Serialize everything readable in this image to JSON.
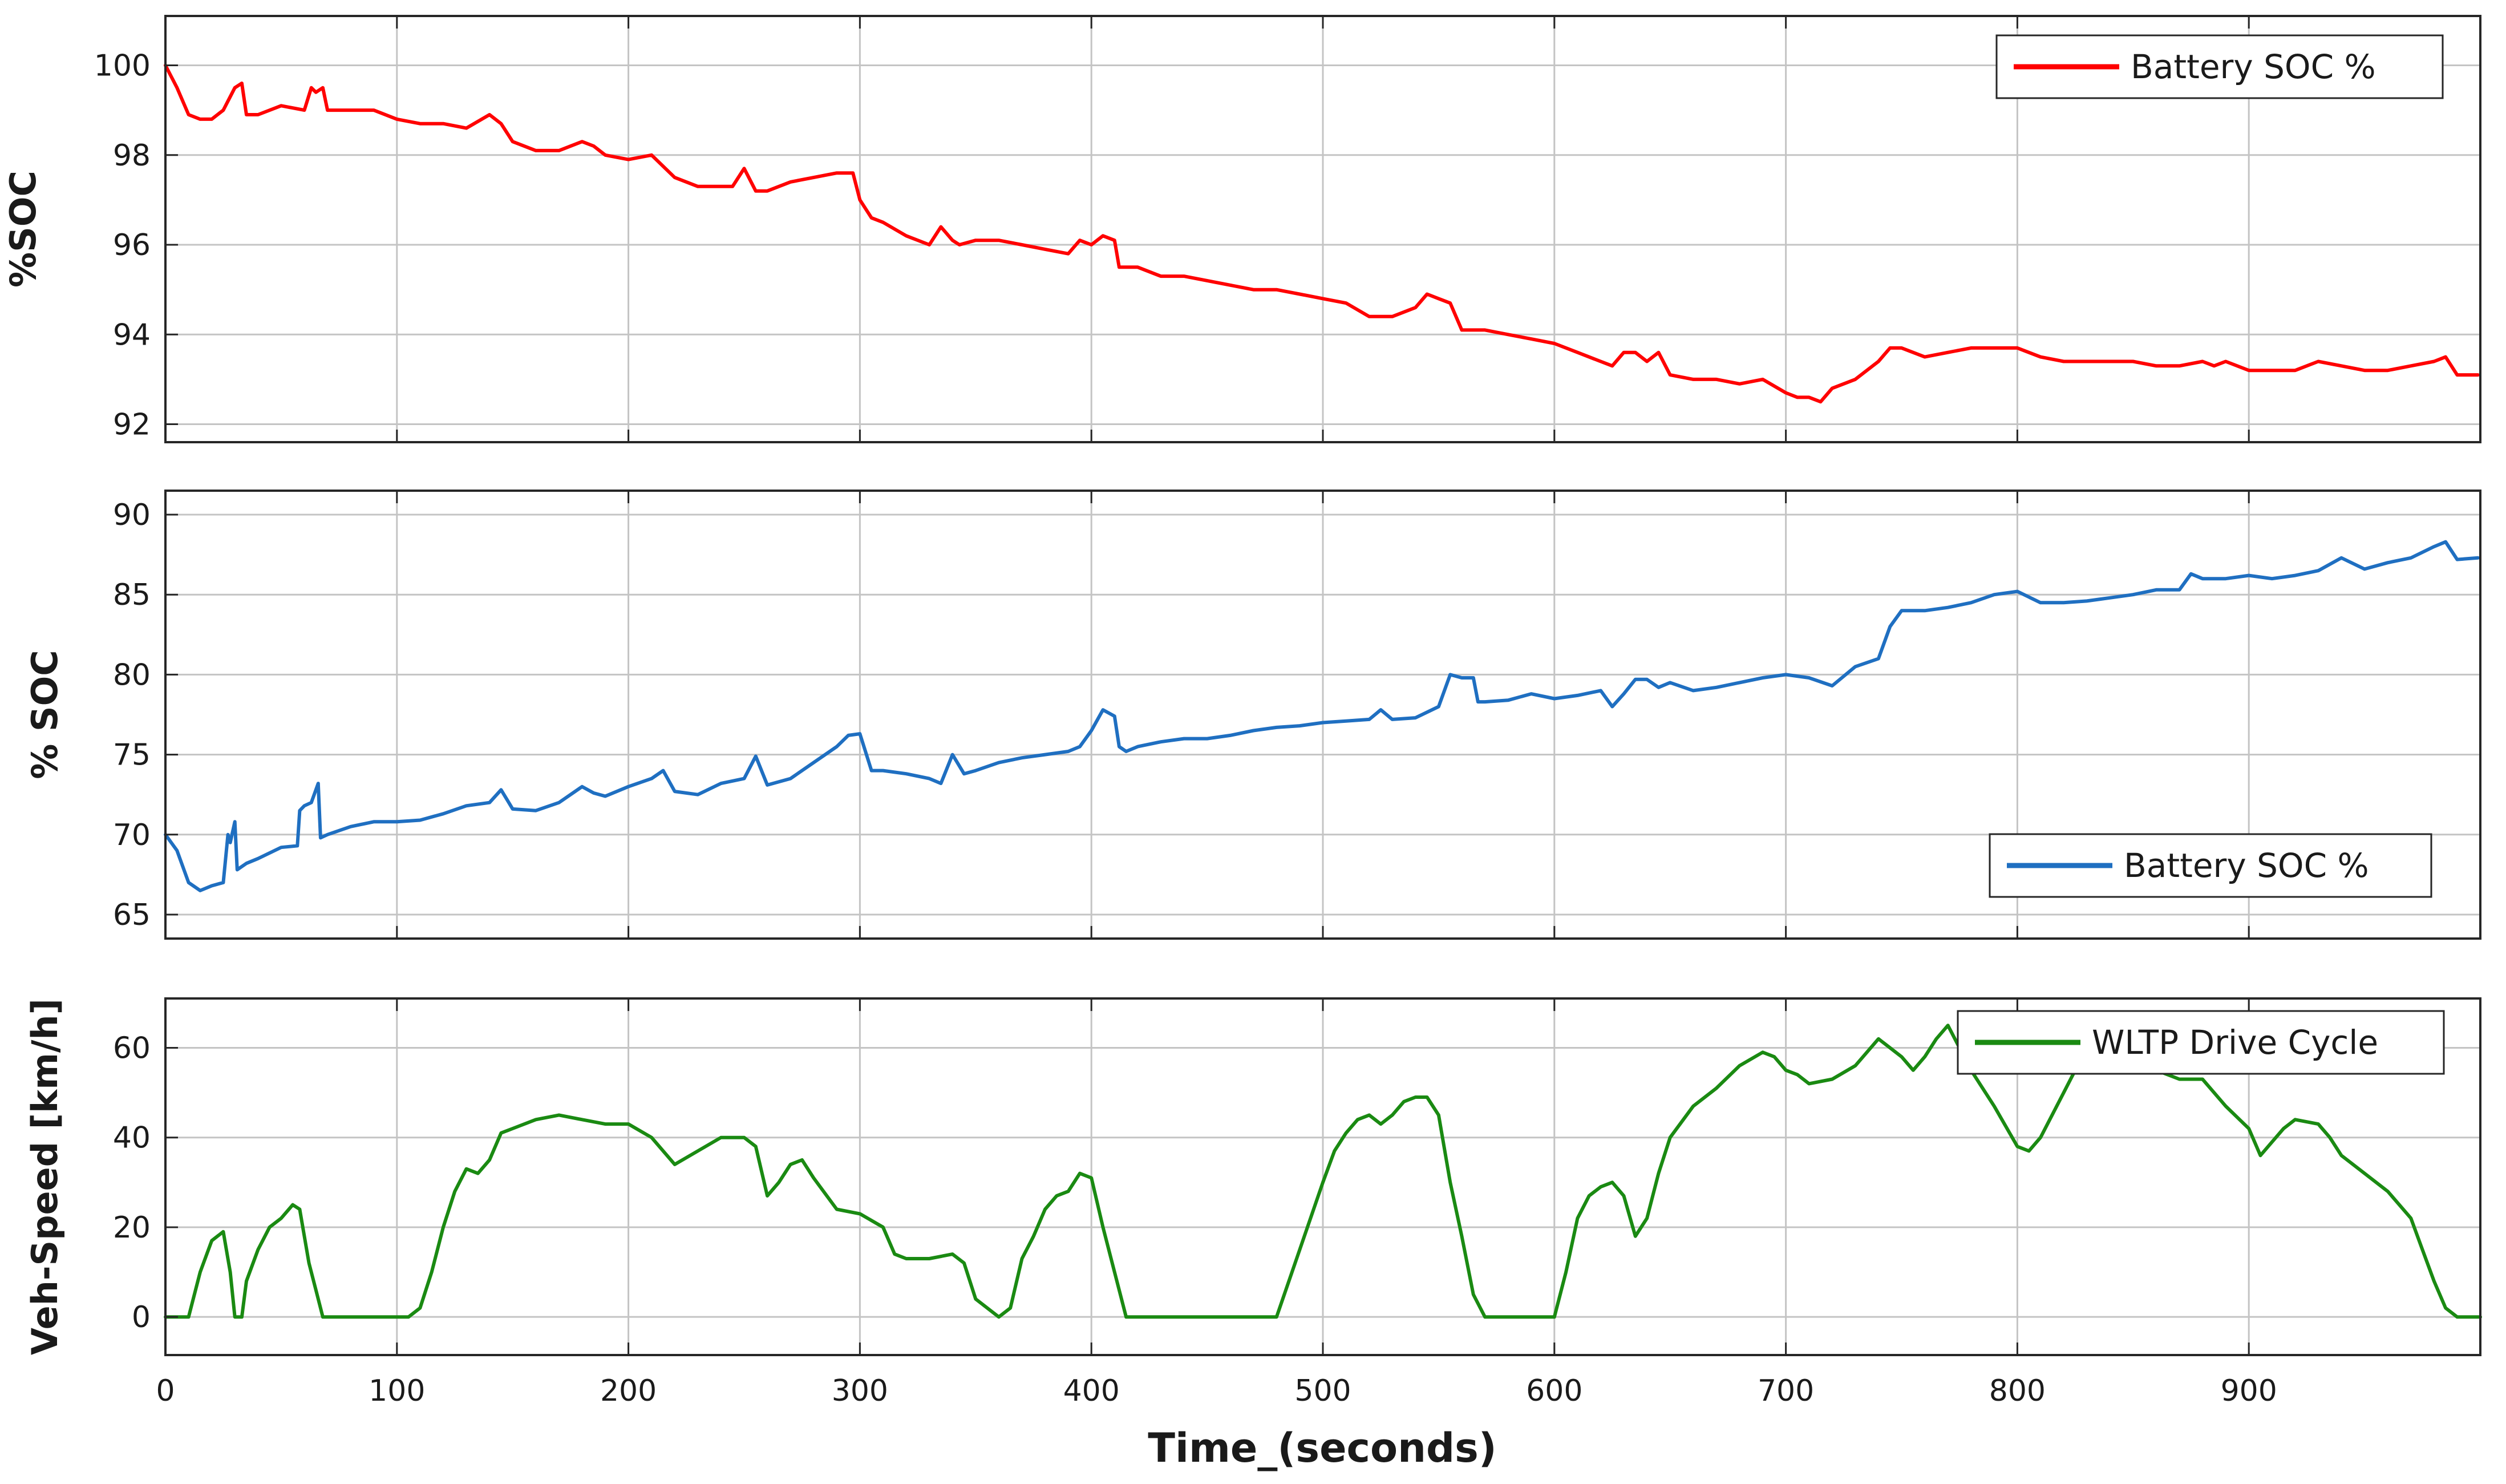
{
  "figure": {
    "xlabel": "Time_(seconds)"
  },
  "chart_data": [
    {
      "type": "line",
      "ylabel": "%SOC",
      "xlim": [
        0,
        1000
      ],
      "ylim": [
        91.6,
        101.1
      ],
      "xticks": [
        0,
        100,
        200,
        300,
        400,
        500,
        600,
        700,
        800,
        900
      ],
      "yticks": [
        92,
        94,
        96,
        98,
        100
      ],
      "grid": true,
      "legend_position": "top-right",
      "series": [
        {
          "name": "Battery SOC %",
          "color": "#ff0000",
          "x": [
            0,
            5,
            10,
            15,
            20,
            25,
            30,
            33,
            35,
            40,
            50,
            60,
            63,
            65,
            68,
            70,
            80,
            90,
            100,
            110,
            120,
            130,
            140,
            145,
            150,
            160,
            170,
            180,
            185,
            190,
            200,
            210,
            220,
            230,
            245,
            250,
            255,
            260,
            270,
            280,
            290,
            297,
            300,
            305,
            310,
            320,
            330,
            335,
            340,
            343,
            350,
            360,
            370,
            380,
            390,
            395,
            400,
            405,
            410,
            412,
            415,
            420,
            430,
            440,
            450,
            460,
            470,
            480,
            490,
            500,
            510,
            520,
            530,
            540,
            545,
            550,
            555,
            560,
            565,
            570,
            580,
            590,
            600,
            610,
            620,
            625,
            630,
            635,
            640,
            645,
            650,
            660,
            670,
            680,
            690,
            700,
            705,
            710,
            715,
            720,
            730,
            740,
            745,
            750,
            760,
            770,
            780,
            790,
            800,
            810,
            820,
            830,
            840,
            850,
            860,
            870,
            880,
            885,
            890,
            900,
            910,
            920,
            930,
            940,
            950,
            960,
            970,
            980,
            985,
            990,
            999
          ],
          "y": [
            100.0,
            99.5,
            98.9,
            98.8,
            98.8,
            99.0,
            99.5,
            99.6,
            98.9,
            98.9,
            99.1,
            99.0,
            99.5,
            99.4,
            99.5,
            99.0,
            99.0,
            99.0,
            98.8,
            98.7,
            98.7,
            98.6,
            98.9,
            98.7,
            98.3,
            98.1,
            98.1,
            98.3,
            98.2,
            98.0,
            97.9,
            98.0,
            97.5,
            97.3,
            97.3,
            97.7,
            97.2,
            97.2,
            97.4,
            97.5,
            97.6,
            97.6,
            97.0,
            96.6,
            96.5,
            96.2,
            96.0,
            96.4,
            96.1,
            96.0,
            96.1,
            96.1,
            96.0,
            95.9,
            95.8,
            96.1,
            96.0,
            96.2,
            96.1,
            95.5,
            95.5,
            95.5,
            95.3,
            95.3,
            95.2,
            95.1,
            95.0,
            95.0,
            94.9,
            94.8,
            94.7,
            94.4,
            94.4,
            94.6,
            94.9,
            94.8,
            94.7,
            94.1,
            94.1,
            94.1,
            94.0,
            93.9,
            93.8,
            93.6,
            93.4,
            93.3,
            93.6,
            93.6,
            93.4,
            93.6,
            93.1,
            93.0,
            93.0,
            92.9,
            93.0,
            92.7,
            92.6,
            92.6,
            92.5,
            92.8,
            93.0,
            93.4,
            93.7,
            93.7,
            93.5,
            93.6,
            93.7,
            93.7,
            93.7,
            93.5,
            93.4,
            93.4,
            93.4,
            93.4,
            93.3,
            93.3,
            93.4,
            93.3,
            93.4,
            93.2,
            93.2,
            93.2,
            93.4,
            93.3,
            93.2,
            93.2,
            93.3,
            93.4,
            93.5,
            93.1,
            93.1
          ]
        }
      ]
    },
    {
      "type": "line",
      "ylabel": "% SOC",
      "xlim": [
        0,
        1000
      ],
      "ylim": [
        63.5,
        91.5
      ],
      "xticks": [
        0,
        100,
        200,
        300,
        400,
        500,
        600,
        700,
        800,
        900
      ],
      "yticks": [
        65,
        70,
        75,
        80,
        85,
        90
      ],
      "grid": true,
      "legend_position": "bottom-right",
      "series": [
        {
          "name": "Battery SOC %",
          "color": "#1f6fc1",
          "x": [
            0,
            5,
            10,
            15,
            20,
            25,
            27,
            28,
            30,
            31,
            35,
            40,
            50,
            57,
            58,
            60,
            63,
            66,
            67,
            70,
            80,
            90,
            100,
            110,
            120,
            130,
            140,
            145,
            150,
            160,
            170,
            180,
            185,
            190,
            200,
            210,
            215,
            220,
            230,
            240,
            250,
            255,
            260,
            270,
            280,
            290,
            295,
            300,
            305,
            310,
            320,
            330,
            335,
            340,
            345,
            350,
            360,
            370,
            380,
            390,
            395,
            400,
            405,
            410,
            412,
            415,
            420,
            430,
            440,
            450,
            460,
            470,
            480,
            490,
            500,
            510,
            520,
            525,
            530,
            540,
            550,
            555,
            560,
            565,
            567,
            570,
            580,
            590,
            600,
            610,
            620,
            625,
            630,
            635,
            640,
            645,
            650,
            660,
            670,
            680,
            690,
            700,
            710,
            720,
            730,
            740,
            745,
            750,
            760,
            770,
            780,
            790,
            800,
            810,
            820,
            830,
            840,
            850,
            860,
            870,
            875,
            880,
            890,
            900,
            910,
            920,
            930,
            940,
            950,
            960,
            970,
            980,
            985,
            990,
            999
          ],
          "y": [
            70.0,
            69.0,
            67.0,
            66.5,
            66.8,
            67.0,
            70.0,
            69.5,
            70.8,
            67.8,
            68.2,
            68.5,
            69.2,
            69.3,
            71.5,
            71.8,
            72.0,
            73.2,
            69.8,
            70.0,
            70.5,
            70.8,
            70.8,
            70.9,
            71.3,
            71.8,
            72.0,
            72.8,
            71.6,
            71.5,
            72.0,
            73.0,
            72.6,
            72.4,
            73.0,
            73.5,
            74.0,
            72.7,
            72.5,
            73.2,
            73.5,
            74.9,
            73.1,
            73.5,
            74.5,
            75.5,
            76.2,
            76.3,
            74.0,
            74.0,
            73.8,
            73.5,
            73.2,
            75.0,
            73.8,
            74.0,
            74.5,
            74.8,
            75.0,
            75.2,
            75.5,
            76.5,
            77.8,
            77.4,
            75.5,
            75.2,
            75.5,
            75.8,
            76.0,
            76.0,
            76.2,
            76.5,
            76.7,
            76.8,
            77.0,
            77.1,
            77.2,
            77.8,
            77.2,
            77.3,
            78.0,
            80.0,
            79.8,
            79.8,
            78.3,
            78.3,
            78.4,
            78.8,
            78.5,
            78.7,
            79.0,
            78.0,
            78.8,
            79.7,
            79.7,
            79.2,
            79.5,
            79.0,
            79.2,
            79.5,
            79.8,
            80.0,
            79.8,
            79.3,
            80.5,
            81.0,
            83.0,
            84.0,
            84.0,
            84.2,
            84.5,
            85.0,
            85.2,
            84.5,
            84.5,
            84.6,
            84.8,
            85.0,
            85.3,
            85.3,
            86.3,
            86.0,
            86.0,
            86.2,
            86.0,
            86.2,
            86.5,
            87.3,
            86.6,
            87.0,
            87.3,
            88.0,
            88.3,
            87.2,
            87.3
          ]
        }
      ]
    },
    {
      "type": "line",
      "ylabel": "Veh-Speed [km/h]",
      "xlabel": "Time_(seconds)",
      "xlim": [
        0,
        1000
      ],
      "ylim": [
        -8.5,
        71
      ],
      "xticks": [
        0,
        100,
        200,
        300,
        400,
        500,
        600,
        700,
        800,
        900
      ],
      "yticks": [
        0,
        20,
        40,
        60
      ],
      "grid": true,
      "legend_position": "top-right",
      "series": [
        {
          "name": "WLTP Drive Cycle",
          "color": "#1a8a12",
          "x": [
            0,
            10,
            15,
            20,
            25,
            28,
            30,
            33,
            35,
            40,
            45,
            50,
            55,
            58,
            62,
            65,
            68,
            70,
            80,
            90,
            100,
            105,
            110,
            115,
            120,
            125,
            130,
            135,
            140,
            145,
            150,
            160,
            170,
            180,
            190,
            200,
            210,
            220,
            230,
            240,
            250,
            255,
            260,
            265,
            270,
            275,
            280,
            290,
            300,
            310,
            315,
            320,
            330,
            340,
            345,
            350,
            355,
            360,
            365,
            370,
            375,
            380,
            385,
            390,
            395,
            400,
            405,
            410,
            415,
            420,
            450,
            470,
            480,
            490,
            500,
            505,
            510,
            515,
            520,
            525,
            530,
            535,
            540,
            545,
            550,
            555,
            560,
            565,
            570,
            580,
            590,
            600,
            605,
            610,
            615,
            620,
            625,
            630,
            635,
            640,
            645,
            650,
            660,
            670,
            680,
            690,
            695,
            700,
            705,
            710,
            720,
            730,
            740,
            750,
            755,
            760,
            765,
            770,
            775,
            780,
            790,
            800,
            805,
            810,
            820,
            830,
            840,
            850,
            860,
            870,
            880,
            890,
            900,
            905,
            910,
            915,
            920,
            930,
            935,
            940,
            950,
            960,
            970,
            975,
            980,
            985,
            990,
            995,
            1000
          ],
          "y": [
            0,
            0,
            10,
            17,
            19,
            10,
            0,
            0,
            8,
            15,
            20,
            22,
            25,
            24,
            12,
            6,
            0,
            0,
            0,
            0,
            0,
            0,
            2,
            10,
            20,
            28,
            33,
            32,
            35,
            41,
            42,
            44,
            45,
            44,
            43,
            43,
            40,
            34,
            37,
            40,
            40,
            38,
            27,
            30,
            34,
            35,
            31,
            24,
            23,
            20,
            14,
            13,
            13,
            14,
            12,
            4,
            2,
            0,
            2,
            13,
            18,
            24,
            27,
            28,
            32,
            31,
            20,
            10,
            0,
            0,
            0,
            0,
            0,
            15,
            30,
            37,
            41,
            44,
            45,
            43,
            45,
            48,
            49,
            49,
            45,
            30,
            18,
            5,
            0,
            0,
            0,
            0,
            10,
            22,
            27,
            29,
            30,
            27,
            18,
            22,
            32,
            40,
            47,
            51,
            56,
            59,
            58,
            55,
            54,
            52,
            53,
            56,
            62,
            58,
            55,
            58,
            62,
            65,
            60,
            55,
            47,
            38,
            37,
            40,
            50,
            60,
            62,
            57,
            55,
            53,
            53,
            47,
            42,
            36,
            39,
            42,
            44,
            43,
            40,
            36,
            32,
            28,
            22,
            15,
            8,
            2,
            0,
            0,
            0
          ]
        }
      ]
    }
  ]
}
